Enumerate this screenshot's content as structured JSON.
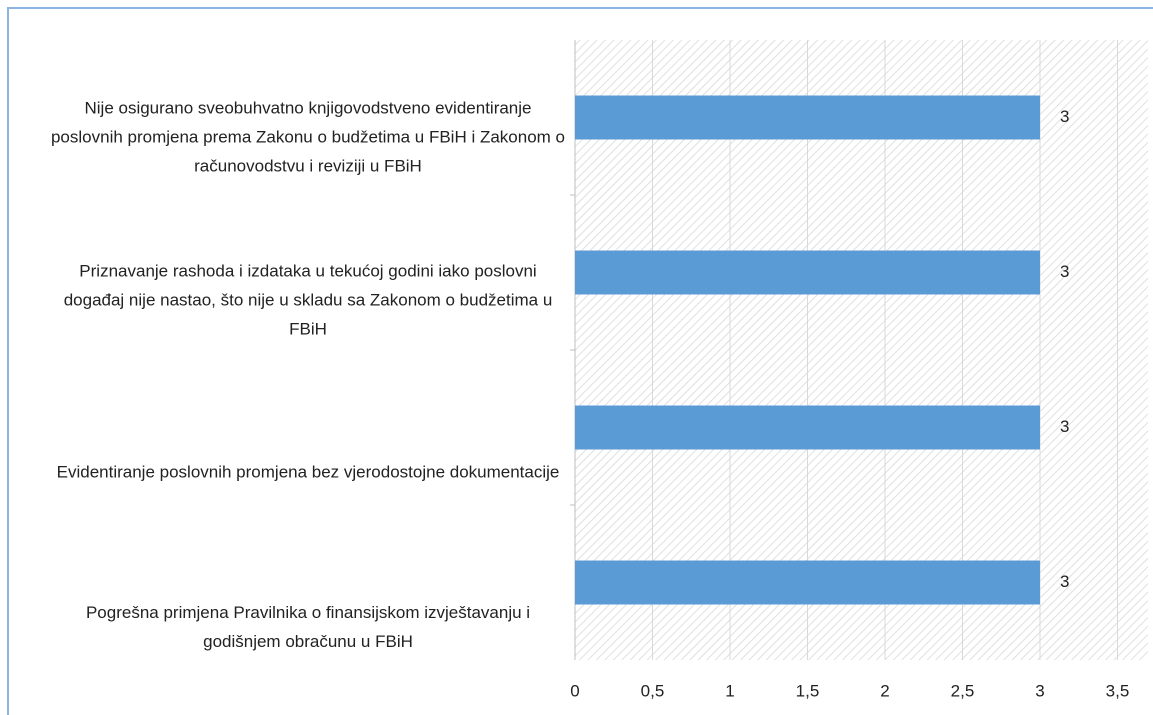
{
  "chart_data": {
    "type": "bar",
    "orientation": "horizontal",
    "categories": [
      "Nije osigurano sveobuhvatno knjigovodstveno evidentiranje poslovnih promjena prema Zakonu o budžetima u FBiH i Zakonom o računovodstvu i reviziji u FBiH",
      "Priznavanje rashoda i izdataka u tekućoj godini iako poslovni događaj nije nastao, što nije u skladu sa Zakonom o budžetima u FBiH",
      "Evidentiranje poslovnih promjena bez vjerodostojne dokumentacije",
      "Pogrešna primjena Pravilnika o finansijskom izvještavanju i godišnjem obračunu u FBiH"
    ],
    "values": [
      3,
      3,
      3,
      3
    ],
    "color": "#5b9bd5",
    "xlim": [
      0,
      3.5
    ],
    "xticks": [
      0,
      {
        "value": 0.5,
        "label": "0,5"
      },
      1,
      {
        "value": 1.5,
        "label": "1,5"
      },
      2,
      {
        "value": 2.5,
        "label": "2,5"
      },
      3,
      {
        "value": 3.5,
        "label": "3,5"
      }
    ]
  }
}
